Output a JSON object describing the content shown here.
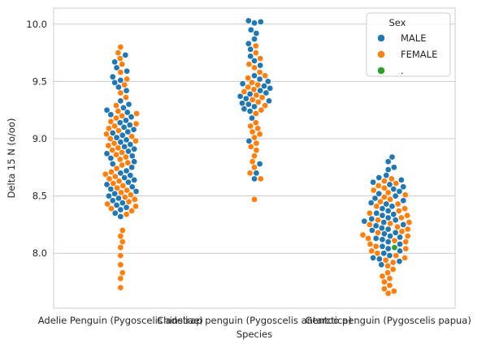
{
  "chart_data": {
    "type": "scatter",
    "subtype": "swarm",
    "xlabel": "Species",
    "ylabel": "Delta 15 N (o/oo)",
    "categories": [
      "Adelie Penguin (Pygoscelis adeliae)",
      "Chinstrap penguin (Pygoscelis antarctica)",
      "Gentoo penguin (Pygoscelis papua)"
    ],
    "ylim": [
      7.52,
      10.14
    ],
    "yticks": [
      "8.0",
      "8.5",
      "9.0",
      "9.5",
      "10.0"
    ],
    "grid": "horizontal",
    "legend": {
      "title": "Sex",
      "placement": "upper-right",
      "entries": [
        {
          "label": "MALE",
          "color": "#1f77b4"
        },
        {
          "label": "FEMALE",
          "color": "#ff7f0e"
        },
        {
          "label": ".",
          "color": "#2ca02c"
        }
      ]
    },
    "series": [
      {
        "name": "MALE",
        "color": "#1f77b4",
        "groups": [
          [
            9.73,
            9.67,
            9.62,
            9.59,
            9.54,
            9.51,
            9.49,
            9.45,
            9.42,
            9.33,
            9.3,
            9.27,
            9.25,
            9.23,
            9.21,
            9.19,
            9.16,
            9.14,
            9.12,
            9.1,
            9.08,
            9.06,
            9.05,
            9.03,
            9.01,
            8.99,
            8.97,
            8.95,
            8.93,
            8.91,
            8.89,
            8.87,
            8.85,
            8.83,
            8.8,
            8.78,
            8.75,
            8.72,
            8.7,
            8.68,
            8.66,
            8.64,
            8.62,
            8.6,
            8.58,
            8.56,
            8.54,
            8.52,
            8.5,
            8.48,
            8.46,
            8.44,
            8.42,
            8.4,
            8.38,
            8.35,
            8.32
          ],
          [
            10.03,
            10.02,
            10.01,
            9.95,
            9.92,
            9.87,
            9.83,
            9.78,
            9.72,
            9.68,
            9.64,
            9.55,
            9.52,
            9.5,
            9.48,
            9.46,
            9.44,
            9.42,
            9.4,
            9.39,
            9.37,
            9.35,
            9.33,
            9.31,
            9.3,
            9.28,
            9.26,
            9.24,
            9.18,
            8.98,
            8.78,
            8.7,
            8.65
          ],
          [
            8.84,
            8.8,
            8.75,
            8.73,
            8.68,
            8.66,
            8.64,
            8.62,
            8.6,
            8.58,
            8.56,
            8.54,
            8.52,
            8.5,
            8.48,
            8.46,
            8.44,
            8.43,
            8.41,
            8.39,
            8.37,
            8.35,
            8.34,
            8.33,
            8.31,
            8.3,
            8.29,
            8.28,
            8.27,
            8.25,
            8.24,
            8.22,
            8.21,
            8.2,
            8.18,
            8.17,
            8.15,
            8.14,
            8.13,
            8.12,
            8.1,
            8.08,
            8.06,
            8.04,
            8.02,
            8.0,
            7.98,
            7.96,
            7.95,
            7.93,
            7.9
          ]
        ]
      },
      {
        "name": "FEMALE",
        "color": "#ff7f0e",
        "groups": [
          [
            9.8,
            9.75,
            9.7,
            9.65,
            9.58,
            9.52,
            9.47,
            9.4,
            9.36,
            9.29,
            9.24,
            9.22,
            9.2,
            9.18,
            9.15,
            9.13,
            9.11,
            9.09,
            9.07,
            9.04,
            9.02,
            9.0,
            8.98,
            8.96,
            8.94,
            8.92,
            8.9,
            8.88,
            8.86,
            8.84,
            8.82,
            8.79,
            8.77,
            8.74,
            8.71,
            8.69,
            8.67,
            8.65,
            8.63,
            8.61,
            8.59,
            8.57,
            8.55,
            8.53,
            8.51,
            8.49,
            8.47,
            8.45,
            8.43,
            8.41,
            8.39,
            8.37,
            8.34,
            8.2,
            8.15,
            8.1,
            8.05,
            7.98,
            7.9,
            7.83,
            7.78,
            7.7
          ],
          [
            9.81,
            9.75,
            9.7,
            9.65,
            9.62,
            9.58,
            9.55,
            9.53,
            9.49,
            9.47,
            9.45,
            9.43,
            9.41,
            9.38,
            9.36,
            9.34,
            9.32,
            9.29,
            9.25,
            9.22,
            9.14,
            9.11,
            9.09,
            9.06,
            9.04,
            9.01,
            8.96,
            8.93,
            8.9,
            8.85,
            8.8,
            8.75,
            8.7,
            8.65,
            8.47
          ],
          [
            8.65,
            8.63,
            8.61,
            8.59,
            8.57,
            8.55,
            8.53,
            8.51,
            8.49,
            8.47,
            8.45,
            8.43,
            8.41,
            8.39,
            8.37,
            8.35,
            8.33,
            8.31,
            8.29,
            8.27,
            8.26,
            8.25,
            8.23,
            8.21,
            8.19,
            8.18,
            8.16,
            8.15,
            8.13,
            8.11,
            8.1,
            8.08,
            8.06,
            8.04,
            8.02,
            8.0,
            7.98,
            7.96,
            7.94,
            7.92,
            7.89,
            7.86,
            7.83,
            7.8,
            7.78,
            7.75,
            7.72,
            7.69,
            7.67,
            7.65
          ]
        ]
      },
      {
        "name": ".",
        "color": "#2ca02c",
        "groups": [
          [],
          [],
          [
            8.05
          ]
        ]
      }
    ]
  }
}
